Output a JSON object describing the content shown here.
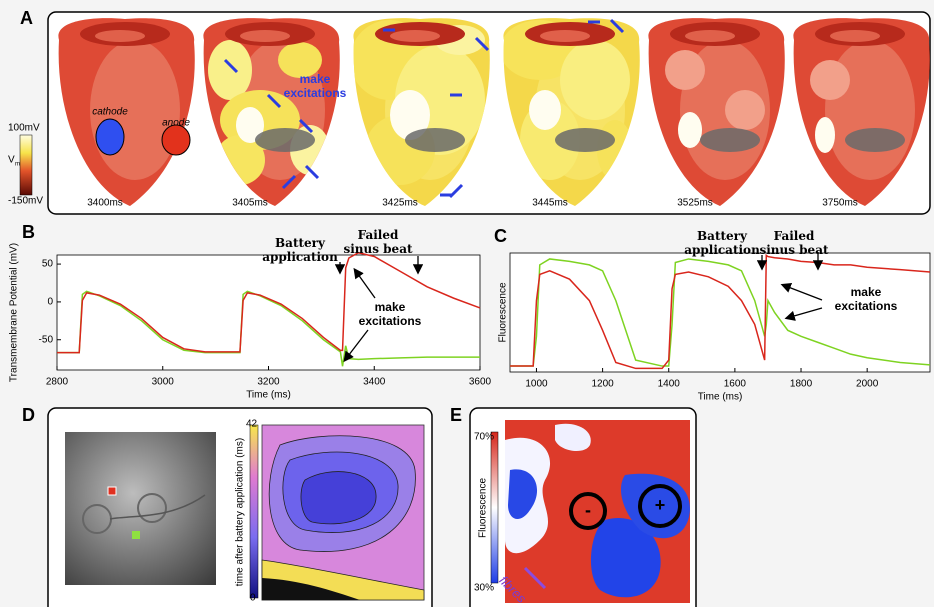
{
  "figure": {
    "a": {
      "label": "A",
      "colorbar": {
        "max": "100mV",
        "symbol": "V",
        "subscript": "m",
        "min": "-150mV"
      },
      "electrodes": [
        "cathode",
        "anode"
      ],
      "annotation": "make excitations",
      "times": [
        "3400ms",
        "3405ms",
        "3425ms",
        "3445ms",
        "3525ms",
        "3750ms"
      ]
    },
    "d": {
      "label": "D",
      "colorbar_label": "time after battery application (ms)",
      "colorbar_max": 42,
      "colorbar_min": 0
    },
    "e": {
      "label": "E",
      "colorbar_max": "70%",
      "colorbar_min": "30%",
      "colorbar_label": "Fluorescence",
      "electrodes": [
        "-",
        "+"
      ],
      "fibres": "fibres"
    }
  },
  "chart_data": [
    {
      "type": "line",
      "label": "B",
      "ylabel": "Transmembrane Potential (mV)",
      "xlabel": "Time (ms)",
      "annotations": [
        "Battery application",
        "Failed sinus beat",
        "make excitations"
      ],
      "x": [
        2800,
        2842,
        2848,
        2856,
        2880,
        2920,
        2960,
        3000,
        3040,
        3080,
        3146,
        3152,
        3160,
        3184,
        3224,
        3264,
        3304,
        3336,
        3340,
        3346,
        3352,
        3370,
        3400,
        3450,
        3500,
        3550,
        3600
      ],
      "series": [
        {
          "color": "#7ed321",
          "values": [
            -67,
            -67,
            10,
            14,
            8,
            -5,
            -25,
            -50,
            -64,
            -67,
            -67,
            10,
            14,
            8,
            -5,
            -25,
            -50,
            -66,
            -85,
            -58,
            -75,
            -76,
            -75,
            -74,
            -73,
            -73,
            -73
          ]
        },
        {
          "color": "#d9261c",
          "values": [
            -67,
            -67,
            2,
            12,
            9,
            -3,
            -22,
            -47,
            -62,
            -66,
            -66,
            2,
            12,
            9,
            -3,
            -22,
            -47,
            -64,
            -64,
            45,
            58,
            65,
            60,
            40,
            20,
            5,
            -8
          ]
        }
      ],
      "xlim": [
        2800,
        3600
      ],
      "ylim": [
        -90,
        62
      ],
      "xticks": [
        2800,
        3000,
        3200,
        3400,
        3600
      ],
      "yticks": [
        50,
        0,
        -50
      ]
    },
    {
      "type": "line",
      "label": "C",
      "ylabel": "Fluorescence",
      "xlabel": "Time (ms)",
      "annotations": [
        "Battery application",
        "Failed sinus beat",
        "make excitations"
      ],
      "x": [
        920,
        990,
        1000,
        1010,
        1040,
        1100,
        1160,
        1200,
        1240,
        1300,
        1380,
        1400,
        1410,
        1420,
        1460,
        1520,
        1580,
        1620,
        1660,
        1690,
        1695,
        1700,
        1720,
        1760,
        1800,
        1850,
        1900,
        1950,
        2000,
        2100,
        2190
      ],
      "series": [
        {
          "color": "#7ed321",
          "values": [
            0.05,
            0.05,
            0.3,
            0.9,
            0.95,
            0.93,
            0.9,
            0.85,
            0.6,
            0.1,
            0.05,
            0.05,
            0.4,
            0.92,
            0.95,
            0.93,
            0.9,
            0.85,
            0.6,
            0.3,
            0.4,
            0.6,
            0.5,
            0.35,
            0.3,
            0.25,
            0.2,
            0.15,
            0.12,
            0.08,
            0.06
          ]
        },
        {
          "color": "#d9261c",
          "values": [
            0.05,
            0.05,
            0.6,
            0.82,
            0.85,
            0.78,
            0.6,
            0.35,
            0.08,
            0.03,
            0.03,
            0.1,
            0.7,
            0.82,
            0.84,
            0.8,
            0.72,
            0.6,
            0.4,
            0.1,
            0.98,
            0.97,
            0.96,
            0.95,
            0.93,
            0.92,
            0.9,
            0.9,
            0.88,
            0.86,
            0.84
          ]
        }
      ],
      "xlim": [
        920,
        2190
      ],
      "ylim": [
        0,
        1
      ],
      "xticks": [
        1000,
        1200,
        1400,
        1600,
        1800,
        2000
      ]
    }
  ]
}
